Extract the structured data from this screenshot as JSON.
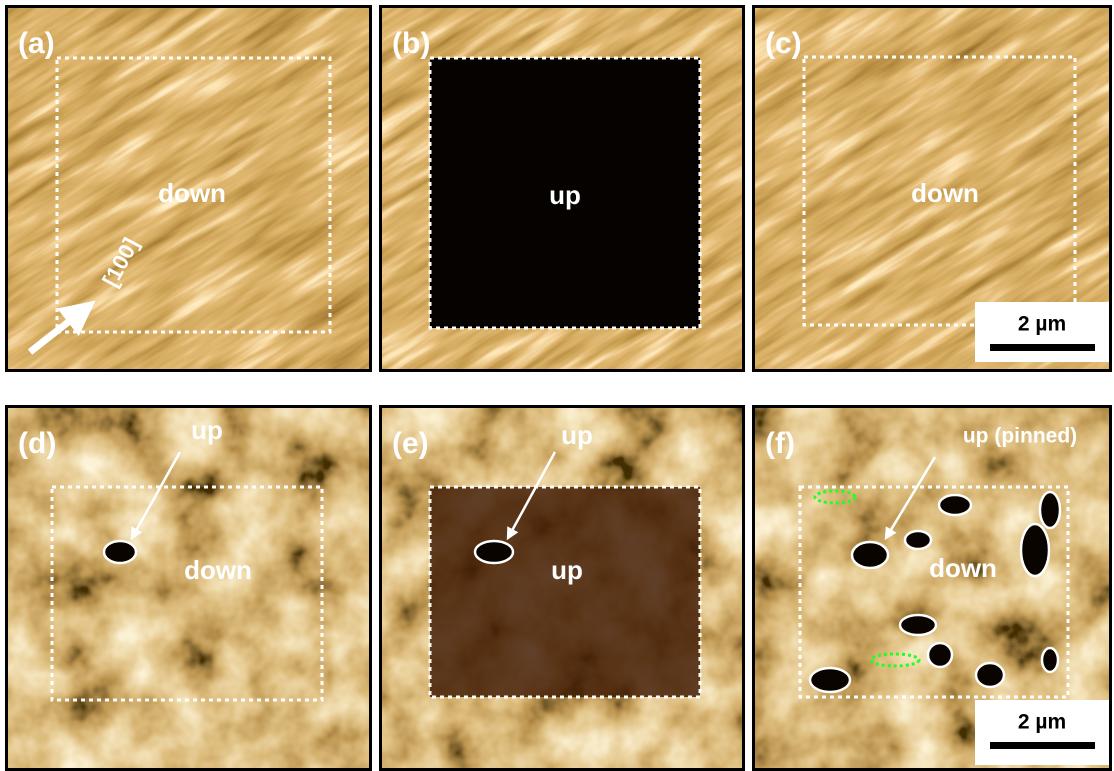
{
  "panels": [
    {
      "label": "(a)",
      "texts": [
        "down",
        "[100]"
      ]
    },
    {
      "label": "(b)",
      "texts": [
        "up"
      ]
    },
    {
      "label": "(c)",
      "texts": [
        "down"
      ],
      "scale_bar": "2 µm"
    },
    {
      "label": "(d)",
      "texts": [
        "up",
        "down"
      ]
    },
    {
      "label": "(e)",
      "texts": [
        "up",
        "up"
      ]
    },
    {
      "label": "(f)",
      "texts": [
        "up (pinned)",
        "down"
      ],
      "scale_bar": "2 µm"
    }
  ]
}
